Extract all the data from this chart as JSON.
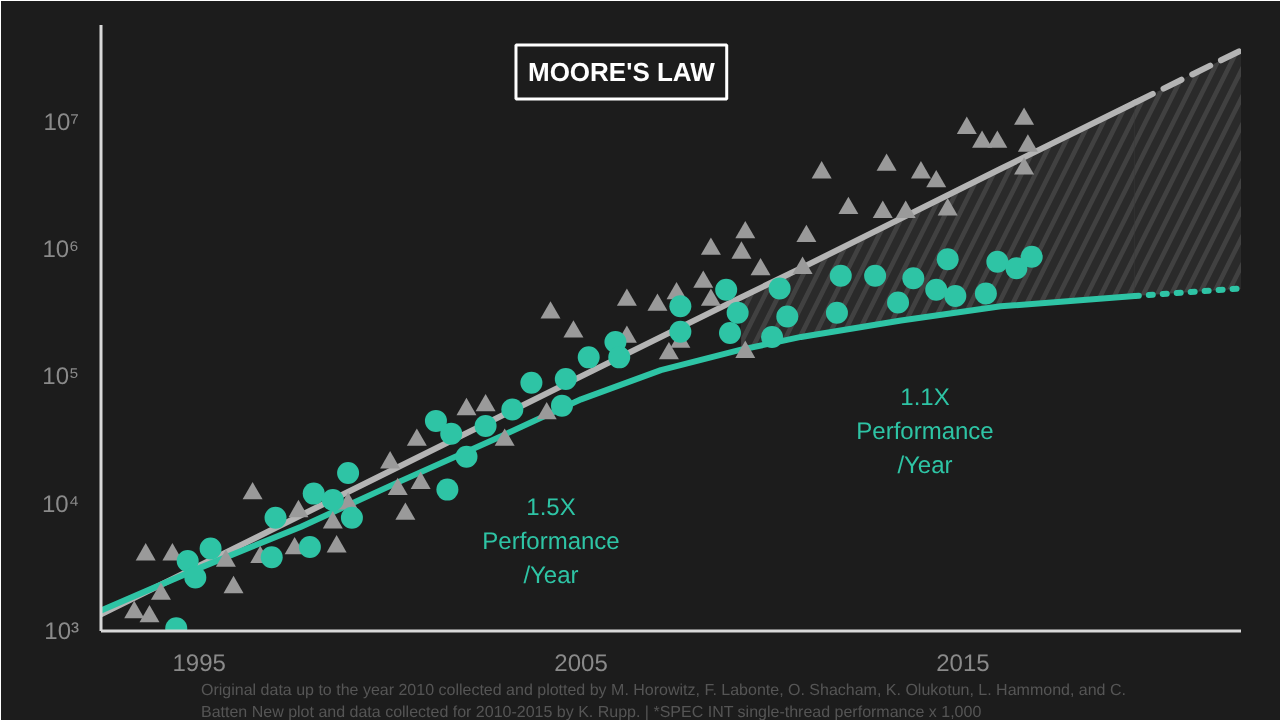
{
  "chart_data": {
    "type": "scatter",
    "title": "MOORE'S LAW",
    "xlim": [
      1992.43,
      2022.28
    ],
    "ylim": [
      1000,
      57500000
    ],
    "log": "y",
    "xticks": [
      1995,
      2005,
      2015
    ],
    "yticks": [
      {
        "value": 1000,
        "label": "10³"
      },
      {
        "value": 10000,
        "label": "10⁴"
      },
      {
        "value": 100000,
        "label": "10⁵"
      },
      {
        "value": 1000000,
        "label": "10⁶"
      },
      {
        "value": 10000000,
        "label": "10⁷"
      }
    ],
    "grid": false,
    "series": [
      {
        "type": "line",
        "color": "#b4b4b4",
        "line_style": "solid",
        "marker": "none",
        "x": [
          1992.43,
          2005.0,
          2009.19,
          2010.76,
          2013.38,
          2015.99,
          2019.5
        ],
        "values": [
          1350,
          100000,
          417000,
          708000,
          1740000,
          4270000,
          14100000
        ],
        "lower": [
          null,
          null,
          162000,
          204000,
          275000,
          355000,
          427000
        ],
        "upper": [
          null,
          null,
          417000,
          708000,
          1740000,
          4270000,
          14100000
        ]
      },
      {
        "type": "line",
        "color": "#b4b4b4",
        "line_style": "dashed",
        "marker": "none",
        "x": [
          2019.5,
          2022.28
        ],
        "values": [
          14100000,
          36300000
        ],
        "lower": [
          427000,
          490000
        ],
        "upper": [
          14100000,
          36300000
        ]
      },
      {
        "type": "line",
        "color": "#2ec4a5",
        "line_style": "solid",
        "marker": "none",
        "x": [
          1992.43,
          1995.05,
          1997.67,
          2000.29,
          2002.91,
          2005.0,
          2007.09,
          2009.19,
          2010.76,
          2013.38,
          2015.99,
          2019.5
        ],
        "values": [
          1450,
          3160,
          6600,
          15100,
          33900,
          66000,
          112000,
          162000,
          204000,
          275000,
          355000,
          427000
        ]
      },
      {
        "type": "line",
        "color": "#2ec4a5",
        "line_style": "dotted",
        "marker": "none",
        "x": [
          2019.5,
          2022.28
        ],
        "values": [
          427000,
          490000
        ]
      },
      {
        "color": "#9a9a9a",
        "marker": "triangle",
        "x": [
          1993.3,
          1993.7,
          1994.0,
          1993.6,
          1994.3,
          1995.7,
          1995.9,
          1996.4,
          1996.6,
          1997.5,
          1997.6,
          1998.5,
          1998.6,
          1998.9,
          2000.0,
          2000.2,
          2000.4,
          2000.8,
          2000.7,
          2002.0,
          2002.5,
          2003.0,
          2004.1,
          2004.2,
          2004.8,
          2006.2,
          2006.2,
          2007.0,
          2007.3,
          2007.5,
          2007.6,
          2008.2,
          2008.4,
          2008.4,
          2009.2,
          2009.3,
          2009.3,
          2009.7,
          2010.8,
          2010.9,
          2011.3,
          2012.0,
          2012.9,
          2013.0,
          2013.5,
          2013.9,
          2014.3,
          2014.6,
          2015.1,
          2015.5,
          2015.9,
          2016.6,
          2016.7,
          2016.6
        ],
        "values": [
          1400,
          1300,
          1950,
          3980,
          3980,
          3550,
          2200,
          12000,
          3800,
          4450,
          8700,
          7100,
          4600,
          10000,
          21000,
          13000,
          8300,
          14500,
          31600,
          55000,
          59000,
          31600,
          51000,
          316000,
          224000,
          398000,
          204000,
          363000,
          151000,
          447000,
          186000,
          550000,
          398000,
          1000000,
          933000,
          1350000,
          155000,
          690000,
          708000,
          1260000,
          3980000,
          2090000,
          1950000,
          4570000,
          1950000,
          3980000,
          3390000,
          2040000,
          8910000,
          6920000,
          6920000,
          10500000,
          6460000,
          4270000
        ]
      },
      {
        "color": "#2ec4a5",
        "marker": "circle",
        "x": [
          1994.4,
          1994.7,
          1994.9,
          1995.3,
          1996.9,
          1997.0,
          1997.9,
          1998.0,
          1998.5,
          1998.9,
          1999.0,
          2001.2,
          2001.6,
          2002.0,
          2001.5,
          2002.5,
          2003.2,
          2003.7,
          2004.5,
          2004.6,
          2005.2,
          2005.9,
          2006.0,
          2007.6,
          2007.6,
          2008.8,
          2008.9,
          2009.1,
          2010.0,
          2010.2,
          2010.4,
          2011.8,
          2011.7,
          2012.7,
          2013.3,
          2013.7,
          2014.3,
          2014.6,
          2014.8,
          2015.6,
          2015.9,
          2016.4,
          2016.8
        ],
        "values": [
          1050,
          3550,
          2630,
          4450,
          3800,
          7760,
          4570,
          12000,
          10700,
          17400,
          7760,
          44700,
          35500,
          23400,
          12900,
          40700,
          55000,
          89100,
          58900,
          95500,
          141000,
          186000,
          141000,
          355000,
          224000,
          479000,
          219000,
          316000,
          204000,
          490000,
          295000,
          617000,
          316000,
          617000,
          380000,
          589000,
          479000,
          832000,
          427000,
          447000,
          794000,
          708000,
          871000
        ]
      }
    ],
    "annotations": [
      "1.5X\nPerformance\n/Year",
      "1.1X\nPerformance\n/Year",
      "Original data up to the year 2010 collected and plotted by M. Horowitz, F. Labonte, O. Shacham, K. Olukotun, L. Hammond, and C.",
      "Batten New plot and data collected for 2010-2015 by K. Rupp. | *SPEC INT single-thread performance x 1,000"
    ]
  }
}
